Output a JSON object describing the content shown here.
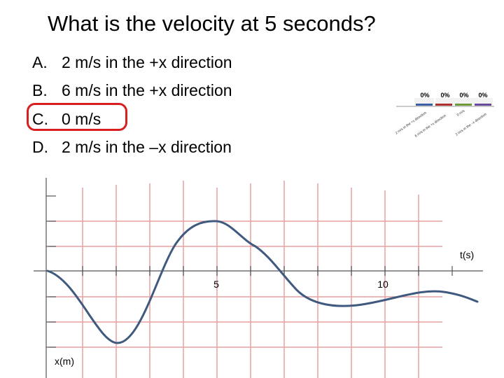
{
  "slide": {
    "title": "What is the velocity at 5 seconds?",
    "options": [
      {
        "letter": "A.",
        "text": "2 m/s in the +x direction"
      },
      {
        "letter": "B.",
        "text": "6 m/s in the +x direction"
      },
      {
        "letter": "C.",
        "text": "0 m/s"
      },
      {
        "letter": "D.",
        "text": "2 m/s in the –x direction"
      }
    ],
    "correct_option": "C.",
    "highlight_color": "#d81e1e"
  },
  "poll": {
    "percentages": [
      "0%",
      "0%",
      "0%",
      "0%"
    ],
    "bar_labels": [
      "2 m/s in the +x direction",
      "6 m/s in the +x direction",
      "0 m/s",
      "2 m/s in the –x direction"
    ]
  },
  "graph": {
    "x_axis_label": "t(s)",
    "y_axis_label": "x(m)",
    "tick_labels": [
      "5",
      "10"
    ],
    "grid_color": "#e8a0a0",
    "curve_color": "#3f5a7e"
  }
}
